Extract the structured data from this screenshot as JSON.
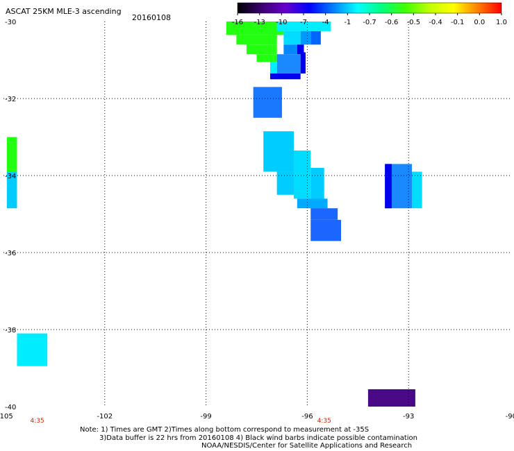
{
  "header": {
    "title": "ASCAT 25KM MLE-3 ascending",
    "date": "20160108"
  },
  "colorbar": {
    "labels": [
      "-16",
      "-13",
      "-10",
      "-7",
      "-4",
      "-1",
      "-0.7",
      "-0.6",
      "-0.5",
      "-0.4",
      "-0.1",
      "0.0",
      "1.0"
    ],
    "stops": [
      "#000000",
      "#3a0070",
      "#6600cc",
      "#0000ff",
      "#0080ff",
      "#00ffff",
      "#00ff80",
      "#40ff00",
      "#c0ff00",
      "#ffff00",
      "#ff8000",
      "#ff0000"
    ]
  },
  "chart_data": {
    "type": "heatmap",
    "xlim": [
      -105,
      -90
    ],
    "ylim": [
      -40,
      -30
    ],
    "xticks": [
      -105,
      -102,
      -99,
      -96,
      -93,
      -90
    ],
    "yticks": [
      -30,
      -32,
      -34,
      -36,
      -38,
      -40
    ],
    "xtick_labels": [
      "-105",
      "-102",
      "-99",
      "-96",
      "-93",
      "-90"
    ],
    "ytick_labels": [
      "-30",
      "-32",
      "-34",
      "-36",
      "-38",
      "-40"
    ],
    "grid": true,
    "time_labels": [
      {
        "lon": -104.0,
        "text": "4:35"
      },
      {
        "lon": -95.5,
        "text": "4:35"
      }
    ],
    "cells": [
      {
        "lon": [
          -98.4,
          -96.7
        ],
        "lat": [
          -30.0,
          -30.35
        ],
        "color": "#22ff11"
      },
      {
        "lon": [
          -98.1,
          -96.9
        ],
        "lat": [
          -30.35,
          -30.6
        ],
        "color": "#22ff11"
      },
      {
        "lon": [
          -97.8,
          -96.9
        ],
        "lat": [
          -30.6,
          -30.85
        ],
        "color": "#22ff11"
      },
      {
        "lon": [
          -97.5,
          -96.9
        ],
        "lat": [
          -30.85,
          -31.05
        ],
        "color": "#22ff11"
      },
      {
        "lon": [
          -96.9,
          -95.3
        ],
        "lat": [
          -30.0,
          -30.25
        ],
        "color": "#00eeff"
      },
      {
        "lon": [
          -96.7,
          -96.2
        ],
        "lat": [
          -30.25,
          -30.6
        ],
        "color": "#00ddff"
      },
      {
        "lon": [
          -96.2,
          -95.9
        ],
        "lat": [
          -30.25,
          -30.6
        ],
        "color": "#0099ff"
      },
      {
        "lon": [
          -95.9,
          -95.6
        ],
        "lat": [
          -30.25,
          -30.6
        ],
        "color": "#0066ff"
      },
      {
        "lon": [
          -96.7,
          -96.3
        ],
        "lat": [
          -30.6,
          -30.85
        ],
        "color": "#0088ff"
      },
      {
        "lon": [
          -96.3,
          -96.1
        ],
        "lat": [
          -30.6,
          -30.85
        ],
        "color": "#0000ee"
      },
      {
        "lon": [
          -96.9,
          -96.2
        ],
        "lat": [
          -30.85,
          -31.35
        ],
        "color": "#1a88ff"
      },
      {
        "lon": [
          -97.1,
          -96.9
        ],
        "lat": [
          -31.05,
          -31.35
        ],
        "color": "#00eeff"
      },
      {
        "lon": [
          -96.2,
          -96.05
        ],
        "lat": [
          -30.8,
          -31.35
        ],
        "color": "#0000ee"
      },
      {
        "lon": [
          -97.1,
          -96.2
        ],
        "lat": [
          -31.35,
          -31.5
        ],
        "color": "#0000ee"
      },
      {
        "lon": [
          -97.6,
          -96.75
        ],
        "lat": [
          -31.7,
          -32.5
        ],
        "color": "#1a77ff"
      },
      {
        "lon": [
          -97.3,
          -96.4
        ],
        "lat": [
          -32.85,
          -33.9
        ],
        "color": "#00ccff"
      },
      {
        "lon": [
          -96.4,
          -95.9
        ],
        "lat": [
          -33.35,
          -34.6
        ],
        "color": "#00ddff"
      },
      {
        "lon": [
          -96.9,
          -96.4
        ],
        "lat": [
          -33.9,
          -34.5
        ],
        "color": "#00ccff"
      },
      {
        "lon": [
          -95.9,
          -95.5
        ],
        "lat": [
          -33.8,
          -34.85
        ],
        "color": "#00ccff"
      },
      {
        "lon": [
          -96.3,
          -95.4
        ],
        "lat": [
          -34.6,
          -34.85
        ],
        "color": "#00aaff"
      },
      {
        "lon": [
          -95.9,
          -95.1
        ],
        "lat": [
          -34.85,
          -35.15
        ],
        "color": "#1a66ff"
      },
      {
        "lon": [
          -95.9,
          -95.0
        ],
        "lat": [
          -35.15,
          -35.7
        ],
        "color": "#1a66ff"
      },
      {
        "lon": [
          -93.7,
          -92.9
        ],
        "lat": [
          -33.7,
          -34.85
        ],
        "color": "#1a88ff"
      },
      {
        "lon": [
          -93.7,
          -93.5
        ],
        "lat": [
          -33.7,
          -34.85
        ],
        "color": "#0000ee"
      },
      {
        "lon": [
          -92.9,
          -92.6
        ],
        "lat": [
          -33.9,
          -34.85
        ],
        "color": "#00ddff"
      },
      {
        "lon": [
          -104.9,
          -104.6
        ],
        "lat": [
          -33.0,
          -33.9
        ],
        "color": "#22ff11"
      },
      {
        "lon": [
          -104.9,
          -104.6
        ],
        "lat": [
          -33.9,
          -34.85
        ],
        "color": "#00ccff"
      },
      {
        "lon": [
          -104.6,
          -103.7
        ],
        "lat": [
          -38.1,
          -38.95
        ],
        "color": "#00eeff"
      },
      {
        "lon": [
          -94.2,
          -92.8
        ],
        "lat": [
          -39.55,
          -40.0
        ],
        "color": "#4a0a88"
      }
    ]
  },
  "notes": {
    "line1": "Note: 1) Times are GMT 2)Times along bottom correspond to measurement at -35S",
    "line2": "3)Data buffer is 22 hrs from 20160108 4) Black wind barbs indicate possible contamination",
    "line3": "NOAA/NESDIS/Center for Satellite Applications and Research"
  }
}
